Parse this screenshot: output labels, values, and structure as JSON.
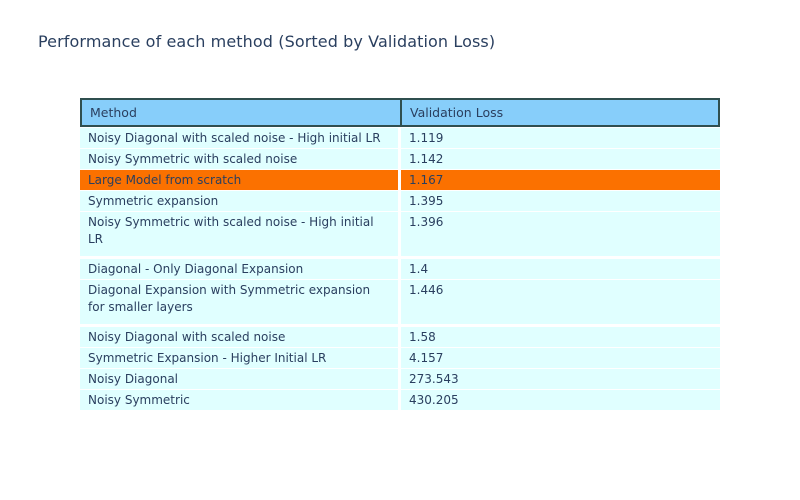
{
  "page": {
    "title": "Performance of each method (Sorted by Validation Loss)"
  },
  "colors": {
    "title_text": "#2a3f5f",
    "cell_text": "#2a3f5f",
    "header_fill": "#87cefa",
    "header_border": "#2f4f4f",
    "row_fill": "#e0ffff",
    "highlight_fill": "#fb7100",
    "background": "#ffffff"
  },
  "chart_data": {
    "type": "table",
    "title": "Performance of each method (Sorted by Validation Loss)",
    "columns": [
      "Method",
      "Validation Loss"
    ],
    "highlighted_row": "Large Model from scratch",
    "rows": [
      {
        "method": "Noisy Diagonal with scaled noise - High initial LR",
        "value": "1.119",
        "highlight": false
      },
      {
        "method": "Noisy Symmetric with scaled noise",
        "value": "1.142",
        "highlight": false
      },
      {
        "method": "Large Model from scratch",
        "value": "1.167",
        "highlight": true
      },
      {
        "method": "Symmetric expansion",
        "value": "1.395",
        "highlight": false
      },
      {
        "method": "Noisy Symmetric with scaled noise - High initial\nLR",
        "value": "1.396",
        "highlight": false
      },
      {
        "method": "Diagonal - Only Diagonal Expansion",
        "value": "1.4",
        "highlight": false
      },
      {
        "method": "Diagonal Expansion with Symmetric expansion\nfor smaller layers",
        "value": "1.446",
        "highlight": false
      },
      {
        "method": "Noisy Diagonal with scaled noise",
        "value": "1.58",
        "highlight": false
      },
      {
        "method": "Symmetric Expansion - Higher Initial LR",
        "value": "4.157",
        "highlight": false
      },
      {
        "method": "Noisy Diagonal",
        "value": "273.543",
        "highlight": false
      },
      {
        "method": "Noisy Symmetric",
        "value": "430.205",
        "highlight": false
      }
    ]
  }
}
